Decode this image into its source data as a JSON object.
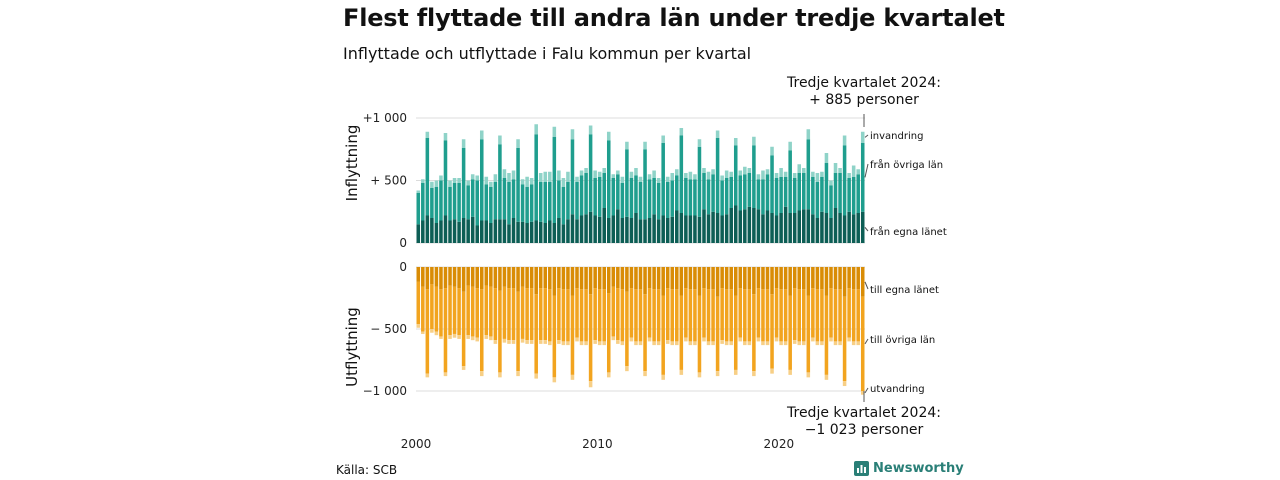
{
  "title": "Flest flyttade till andra län under tredje kvartalet",
  "subtitle": "Inflyttade och utflyttade i Falu kommun per kvartal",
  "source": "Källa: SCB",
  "brand": {
    "name": "Newsworthy",
    "icon": "bar-chart-logo-icon"
  },
  "colors": {
    "in_egna": "#0d5e55",
    "in_ovriga": "#1f9e8e",
    "invandring": "#8fd3c8",
    "ut_egna": "#d98c05",
    "ut_ovriga": "#f2a41f",
    "utvandring": "#f7cf86"
  },
  "chart_data": [
    {
      "type": "bar",
      "stacked": true,
      "ylabel": "Inflyttning",
      "ylim": [
        0,
        1000
      ],
      "yticks": [
        0,
        500,
        1000
      ],
      "ytick_labels": [
        "0",
        "+ 500",
        "+1 000"
      ],
      "x_start": "2000 Q1",
      "x_end": "2024 Q3",
      "quarters": 99,
      "xtick_labels": [
        "2000",
        "2010",
        "2020"
      ],
      "grid": true,
      "series": [
        {
          "name": "från egna länet",
          "values": [
            150,
            180,
            220,
            200,
            160,
            180,
            220,
            180,
            190,
            170,
            200,
            190,
            210,
            140,
            180,
            180,
            160,
            190,
            190,
            190,
            150,
            200,
            170,
            170,
            160,
            170,
            180,
            170,
            160,
            180,
            160,
            200,
            150,
            190,
            230,
            190,
            220,
            230,
            250,
            220,
            210,
            280,
            200,
            220,
            270,
            200,
            210,
            200,
            240,
            190,
            190,
            200,
            230,
            190,
            220,
            200,
            210,
            260,
            240,
            220,
            220,
            220,
            210,
            270,
            230,
            250,
            240,
            220,
            230,
            280,
            300,
            260,
            270,
            290,
            280,
            270,
            230,
            260,
            240,
            220,
            240,
            290,
            240,
            240,
            260,
            270,
            270,
            230,
            200,
            250,
            240,
            200,
            280,
            240,
            220,
            250,
            230,
            240,
            250
          ]
        },
        {
          "name": "från övriga län",
          "values": [
            250,
            300,
            620,
            240,
            290,
            320,
            600,
            270,
            290,
            310,
            560,
            270,
            300,
            360,
            650,
            290,
            290,
            300,
            600,
            330,
            340,
            310,
            590,
            300,
            290,
            300,
            690,
            320,
            330,
            310,
            690,
            300,
            300,
            300,
            600,
            300,
            320,
            330,
            620,
            300,
            320,
            280,
            620,
            300,
            280,
            280,
            540,
            320,
            300,
            300,
            560,
            310,
            290,
            290,
            580,
            290,
            290,
            280,
            620,
            300,
            290,
            290,
            560,
            290,
            280,
            300,
            600,
            280,
            290,
            250,
            480,
            280,
            280,
            270,
            500,
            240,
            280,
            290,
            460,
            300,
            290,
            240,
            500,
            280,
            300,
            290,
            560,
            300,
            290,
            280,
            400,
            260,
            280,
            320,
            560,
            270,
            300,
            310,
            550
          ]
        },
        {
          "name": "invandring",
          "values": [
            20,
            30,
            50,
            50,
            50,
            40,
            60,
            50,
            40,
            40,
            70,
            40,
            40,
            40,
            70,
            60,
            40,
            60,
            70,
            70,
            70,
            70,
            70,
            40,
            80,
            50,
            80,
            70,
            80,
            80,
            80,
            80,
            70,
            80,
            80,
            40,
            40,
            40,
            70,
            60,
            40,
            40,
            70,
            30,
            30,
            50,
            60,
            50,
            60,
            40,
            60,
            40,
            60,
            40,
            60,
            40,
            60,
            50,
            60,
            40,
            60,
            40,
            60,
            40,
            60,
            40,
            60,
            40,
            60,
            40,
            60,
            40,
            60,
            40,
            70,
            40,
            70,
            40,
            70,
            40,
            70,
            40,
            70,
            40,
            70,
            40,
            80,
            40,
            70,
            40,
            80,
            40,
            80,
            40,
            80,
            40,
            90,
            40,
            90
          ]
        }
      ],
      "annotation": "Tredje kvartalet 2024:\n+  885 personer"
    },
    {
      "type": "bar",
      "stacked": true,
      "ylabel": "Utflyttning",
      "ylim": [
        -1000,
        0
      ],
      "yticks": [
        0,
        -500,
        -1000
      ],
      "ytick_labels": [
        "0",
        "− 500",
        "−1 000"
      ],
      "x_start": "2000 Q1",
      "x_end": "2024 Q3",
      "quarters": 99,
      "xtick_labels": [
        "2000",
        "2010",
        "2020"
      ],
      "grid": true,
      "series": [
        {
          "name": "till egna länet",
          "values": [
            -120,
            -160,
            -180,
            -140,
            -160,
            -180,
            -170,
            -150,
            -160,
            -170,
            -200,
            -150,
            -160,
            -170,
            -180,
            -150,
            -160,
            -170,
            -190,
            -160,
            -170,
            -170,
            -200,
            -160,
            -170,
            -170,
            -220,
            -170,
            -170,
            -180,
            -230,
            -170,
            -180,
            -180,
            -230,
            -170,
            -180,
            -180,
            -220,
            -170,
            -180,
            -180,
            -210,
            -160,
            -170,
            -180,
            -200,
            -170,
            -180,
            -180,
            -220,
            -170,
            -180,
            -180,
            -230,
            -170,
            -180,
            -180,
            -230,
            -170,
            -180,
            -180,
            -230,
            -170,
            -180,
            -180,
            -240,
            -170,
            -180,
            -180,
            -230,
            -170,
            -180,
            -180,
            -220,
            -170,
            -180,
            -180,
            -220,
            -170,
            -180,
            -180,
            -230,
            -170,
            -180,
            -180,
            -230,
            -170,
            -180,
            -180,
            -230,
            -170,
            -180,
            -180,
            -240,
            -170,
            -180,
            -180,
            -240
          ]
        },
        {
          "name": "till övriga län",
          "values": [
            -340,
            -360,
            -680,
            -360,
            -360,
            -380,
            -680,
            -400,
            -380,
            -380,
            -600,
            -400,
            -400,
            -400,
            -660,
            -400,
            -400,
            -420,
            -660,
            -420,
            -420,
            -420,
            -640,
            -420,
            -420,
            -420,
            -640,
            -420,
            -420,
            -420,
            -660,
            -420,
            -420,
            -420,
            -640,
            -400,
            -420,
            -420,
            -700,
            -420,
            -420,
            -420,
            -640,
            -400,
            -420,
            -420,
            -600,
            -400,
            -420,
            -420,
            -620,
            -400,
            -420,
            -420,
            -640,
            -420,
            -420,
            -420,
            -600,
            -400,
            -420,
            -420,
            -620,
            -400,
            -420,
            -420,
            -600,
            -420,
            -420,
            -420,
            -600,
            -400,
            -420,
            -420,
            -620,
            -400,
            -420,
            -420,
            -600,
            -400,
            -420,
            -420,
            -600,
            -420,
            -420,
            -420,
            -620,
            -400,
            -420,
            -420,
            -640,
            -400,
            -420,
            -420,
            -680,
            -400,
            -420,
            -420,
            -760
          ]
        },
        {
          "name": "utvandring",
          "values": [
            -30,
            -20,
            -30,
            -30,
            -30,
            -20,
            -30,
            -30,
            -30,
            -30,
            -30,
            -30,
            -30,
            -30,
            -40,
            -30,
            -30,
            -30,
            -40,
            -30,
            -30,
            -30,
            -40,
            -30,
            -30,
            -30,
            -40,
            -30,
            -30,
            -30,
            -40,
            -30,
            -30,
            -30,
            -40,
            -30,
            -30,
            -30,
            -50,
            -30,
            -30,
            -30,
            -40,
            -30,
            -30,
            -30,
            -40,
            -30,
            -30,
            -30,
            -40,
            -30,
            -30,
            -30,
            -40,
            -30,
            -30,
            -30,
            -40,
            -30,
            -30,
            -30,
            -40,
            -30,
            -30,
            -30,
            -40,
            -30,
            -30,
            -30,
            -40,
            -30,
            -30,
            -30,
            -40,
            -30,
            -30,
            -30,
            -40,
            -30,
            -30,
            -30,
            -40,
            -30,
            -30,
            -30,
            -40,
            -30,
            -30,
            -30,
            -40,
            -30,
            -30,
            -30,
            -40,
            -30,
            -30,
            -30,
            -30
          ]
        }
      ],
      "annotation": "Tredje kvartalet 2024:\n−1 023 personer"
    }
  ]
}
